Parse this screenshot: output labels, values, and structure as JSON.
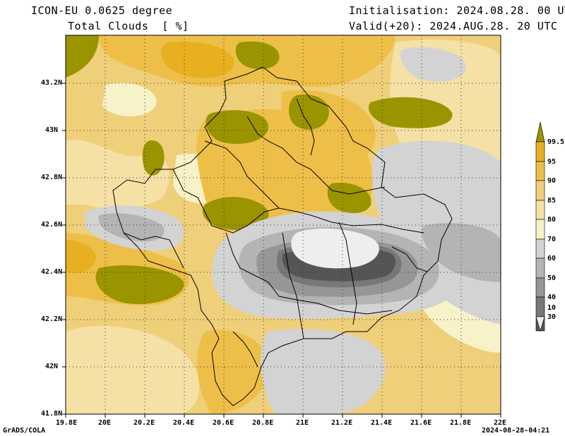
{
  "header": {
    "model": "ICON-EU 0.0625 degree",
    "variable": "Total Clouds  [ %]",
    "init": "Initialisation: 2024.08.28. 00 UTC",
    "valid": "Valid(+20): 2024.AUG.28. 20 UTC"
  },
  "axes": {
    "x_labels": [
      "19.8E",
      "20E",
      "20.2E",
      "20.4E",
      "20.6E",
      "20.8E",
      "21E",
      "21.2E",
      "21.4E",
      "21.6E",
      "21.8E",
      "22E"
    ],
    "y_labels": [
      "43.2N",
      "43N",
      "42.8N",
      "42.6N",
      "42.4N",
      "42.2N",
      "42N",
      "41.8N"
    ]
  },
  "colorbar": {
    "labels": [
      "99.5",
      "95",
      "90",
      "85",
      "80",
      "70",
      "60",
      "50",
      "40",
      "30",
      "10"
    ],
    "colors": {
      "over_995": "#9a9400",
      "95_995": "#e8b020",
      "90_95": "#eebf48",
      "85_90": "#f0cf7a",
      "80_85": "#f5e1a6",
      "70_80": "#f7f2c8",
      "60_70": "#d3d3d3",
      "50_60": "#b4b4b4",
      "40_50": "#969696",
      "30_40": "#787878",
      "10_30": "#555555",
      "under_10": "#eeeeee"
    }
  },
  "footer": {
    "left": "GrADS/COLA",
    "right": "2024-08-28-04:21"
  }
}
